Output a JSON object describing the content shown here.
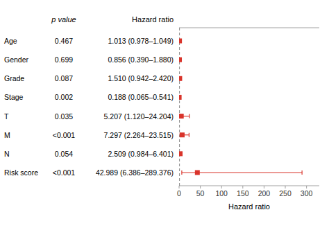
{
  "chart_data": {
    "type": "forest",
    "xlabel": "Hazard ratio",
    "p_value_header": "p value",
    "value_header": "Hazard ratio",
    "categories": [
      "Age",
      "Gender",
      "Grade",
      "Stage",
      "T",
      "M",
      "N",
      "Risk score"
    ],
    "values": [
      1.013,
      0.856,
      1.51,
      0.188,
      5.207,
      7.297,
      2.509,
      42.989
    ],
    "ci_low": [
      0.978,
      0.39,
      0.942,
      0.065,
      1.12,
      2.264,
      0.984,
      6.386
    ],
    "ci_high": [
      1.049,
      1.88,
      2.42,
      0.541,
      24.204,
      23.515,
      6.401,
      289.376
    ],
    "value_labels": [
      "1.013 (0.978–1.049)",
      "0.856 (0.390–1.880)",
      "1.510 (0.942–2.420)",
      "0.188 (0.065–0.541)",
      "5.207 (1.120–24.204)",
      "7.297 (2.264–23.515)",
      "2.509 (0.984–6.401)",
      "42.989 (6.386–289.376)"
    ],
    "p_values": [
      "0.467",
      "0.699",
      "0.087",
      "0.002",
      "0.035",
      "<0.001",
      "0.054",
      "<0.001"
    ],
    "reference_line": 1,
    "xlim": [
      0,
      330
    ],
    "xticks": [
      0,
      50,
      100,
      150,
      200,
      250,
      300
    ],
    "color": "#d9342b",
    "grid": false
  }
}
